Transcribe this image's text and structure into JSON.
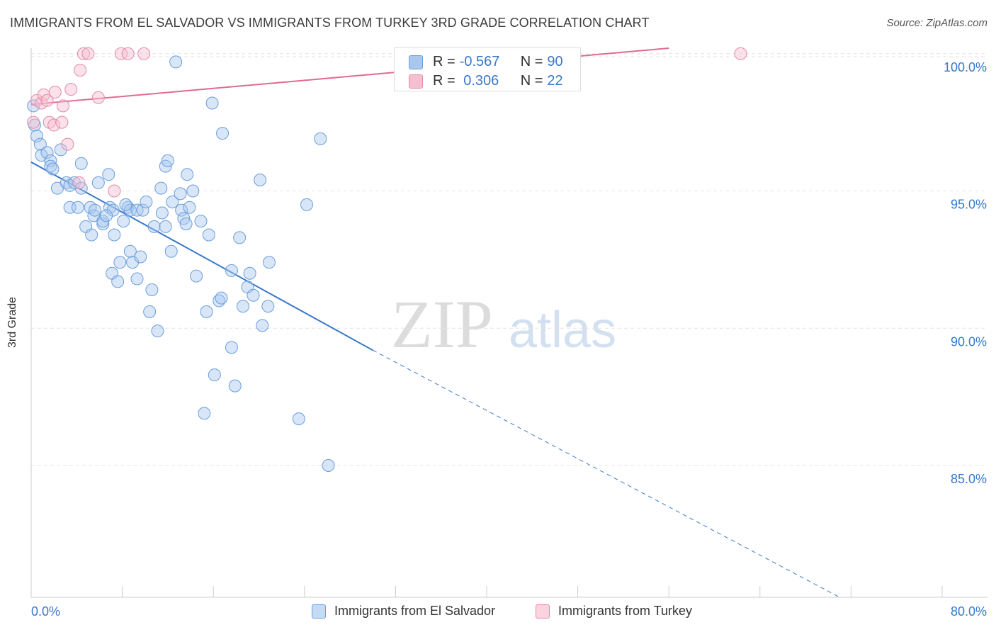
{
  "title": "IMMIGRANTS FROM EL SALVADOR VS IMMIGRANTS FROM TURKEY 3RD GRADE CORRELATION CHART",
  "source": "Source: ZipAtlas.com",
  "watermark": {
    "zip": "ZIP",
    "atlas": "atlas"
  },
  "stats": {
    "rows": [
      {
        "r_label": "R = ",
        "r_value": "-0.567",
        "n_label": "N = ",
        "n_value": "90",
        "color": "#a9c8f0",
        "border": "#6b9edb"
      },
      {
        "r_label": "R = ",
        "r_value": " 0.306",
        "n_label": "N = ",
        "n_value": "22",
        "color": "#f6bfd0",
        "border": "#e38aa7"
      }
    ]
  },
  "legend": [
    {
      "label": "Immigrants from El Salvador",
      "color": "#c5dbf5",
      "border": "#6b9edb"
    },
    {
      "label": "Immigrants from Turkey",
      "color": "#fbd3df",
      "border": "#e38aa7"
    }
  ],
  "chart_data": {
    "type": "scatter",
    "title": "IMMIGRANTS FROM EL SALVADOR VS IMMIGRANTS FROM TURKEY 3RD GRADE CORRELATION CHART",
    "xlabel": "",
    "ylabel": "3rd Grade",
    "xlim": [
      0,
      80
    ],
    "ylim": [
      80.2,
      100.2
    ],
    "x_tick_labels": [
      "0.0%",
      "80.0%"
    ],
    "y_ticks": [
      85,
      90,
      95,
      100
    ],
    "y_tick_labels": [
      "85.0%",
      "90.0%",
      "95.0%",
      "100.0%"
    ],
    "grid": true,
    "legend_position": "bottom-center",
    "series": [
      {
        "name": "Immigrants from El Salvador",
        "color": "#6b9edb",
        "fill": "rgba(169,200,240,0.45)",
        "points": [
          [
            0.2,
            98.1
          ],
          [
            0.3,
            97.4
          ],
          [
            0.5,
            97.0
          ],
          [
            0.8,
            96.7
          ],
          [
            0.9,
            96.3
          ],
          [
            1.4,
            96.4
          ],
          [
            1.7,
            96.1
          ],
          [
            1.7,
            95.9
          ],
          [
            1.9,
            95.8
          ],
          [
            2.6,
            96.5
          ],
          [
            2.3,
            95.1
          ],
          [
            3.1,
            95.3
          ],
          [
            3.4,
            95.2
          ],
          [
            3.8,
            95.3
          ],
          [
            4.4,
            96.0
          ],
          [
            4.4,
            95.1
          ],
          [
            3.4,
            94.4
          ],
          [
            4.1,
            94.4
          ],
          [
            4.8,
            93.7
          ],
          [
            5.2,
            94.4
          ],
          [
            5.5,
            94.1
          ],
          [
            5.3,
            93.4
          ],
          [
            5.6,
            94.3
          ],
          [
            5.9,
            95.3
          ],
          [
            6.3,
            93.8
          ],
          [
            6.3,
            93.9
          ],
          [
            6.8,
            95.6
          ],
          [
            6.9,
            94.4
          ],
          [
            7.1,
            92.0
          ],
          [
            7.2,
            94.3
          ],
          [
            7.3,
            93.4
          ],
          [
            7.6,
            91.7
          ],
          [
            7.8,
            92.4
          ],
          [
            8.1,
            93.9
          ],
          [
            8.5,
            94.4
          ],
          [
            8.7,
            94.3
          ],
          [
            8.7,
            92.8
          ],
          [
            8.9,
            92.4
          ],
          [
            9.3,
            94.3
          ],
          [
            9.3,
            91.8
          ],
          [
            9.6,
            92.6
          ],
          [
            9.8,
            94.3
          ],
          [
            10.1,
            94.6
          ],
          [
            10.4,
            90.6
          ],
          [
            10.6,
            91.4
          ],
          [
            10.8,
            93.7
          ],
          [
            11.1,
            89.9
          ],
          [
            11.4,
            95.1
          ],
          [
            11.5,
            94.2
          ],
          [
            11.8,
            93.7
          ],
          [
            11.8,
            95.9
          ],
          [
            12.3,
            92.8
          ],
          [
            12.4,
            94.6
          ],
          [
            12.7,
            99.7
          ],
          [
            13.1,
            94.9
          ],
          [
            13.2,
            94.3
          ],
          [
            13.4,
            94.0
          ],
          [
            13.6,
            93.8
          ],
          [
            13.7,
            95.6
          ],
          [
            13.9,
            94.4
          ],
          [
            14.5,
            91.9
          ],
          [
            14.9,
            93.9
          ],
          [
            15.2,
            86.9
          ],
          [
            15.4,
            90.6
          ],
          [
            15.6,
            93.4
          ],
          [
            15.9,
            98.2
          ],
          [
            16.1,
            88.3
          ],
          [
            16.5,
            91.0
          ],
          [
            16.7,
            91.1
          ],
          [
            16.8,
            97.1
          ],
          [
            17.6,
            89.3
          ],
          [
            17.6,
            92.1
          ],
          [
            17.9,
            87.9
          ],
          [
            18.6,
            90.8
          ],
          [
            19.0,
            91.5
          ],
          [
            19.2,
            92.0
          ],
          [
            19.5,
            91.2
          ],
          [
            20.1,
            95.4
          ],
          [
            20.3,
            90.1
          ],
          [
            20.8,
            90.8
          ],
          [
            20.9,
            92.4
          ],
          [
            23.5,
            86.7
          ],
          [
            24.2,
            94.5
          ],
          [
            25.4,
            96.9
          ],
          [
            26.1,
            85.0
          ],
          [
            12.0,
            96.1
          ],
          [
            14.2,
            95.0
          ],
          [
            18.3,
            93.3
          ],
          [
            8.3,
            94.5
          ],
          [
            6.6,
            94.1
          ]
        ],
        "trend": {
          "x_start": 0.0,
          "y_start": 96.05,
          "x_solid_end": 30.0,
          "y_solid_end": 89.2,
          "x_end": 71.0,
          "y_end": 80.2
        }
      },
      {
        "name": "Immigrants from Turkey",
        "color": "#e38aa7",
        "fill": "rgba(246,191,208,0.45)",
        "points": [
          [
            0.2,
            97.5
          ],
          [
            0.5,
            98.3
          ],
          [
            0.9,
            98.2
          ],
          [
            1.1,
            98.5
          ],
          [
            1.4,
            98.3
          ],
          [
            1.6,
            97.5
          ],
          [
            2.0,
            97.4
          ],
          [
            2.1,
            98.6
          ],
          [
            2.7,
            97.5
          ],
          [
            2.8,
            98.1
          ],
          [
            3.2,
            96.7
          ],
          [
            3.5,
            98.7
          ],
          [
            4.2,
            95.3
          ],
          [
            4.3,
            99.4
          ],
          [
            4.6,
            100.0
          ],
          [
            5.0,
            100.0
          ],
          [
            5.9,
            98.4
          ],
          [
            7.3,
            95.0
          ],
          [
            7.9,
            100.0
          ],
          [
            8.5,
            100.0
          ],
          [
            9.9,
            100.0
          ],
          [
            62.3,
            100.0
          ]
        ],
        "trend": {
          "x_start": 0.0,
          "y_start": 98.15,
          "x_end": 56.0,
          "y_end": 100.2
        }
      }
    ]
  }
}
